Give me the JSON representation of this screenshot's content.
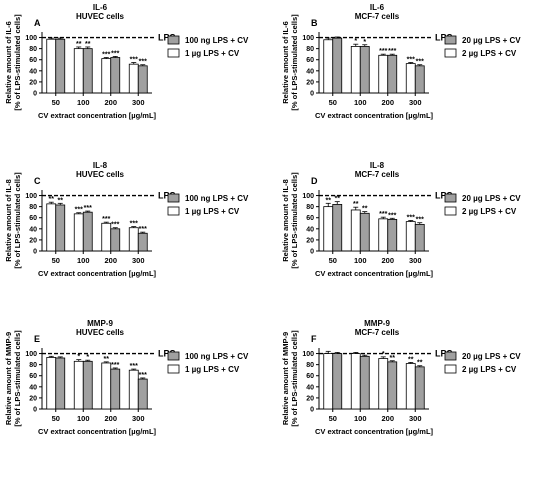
{
  "chart_data": [
    {
      "type": "bar",
      "panel": "A",
      "title": "IL-6",
      "subtitle": "HUVEC cells",
      "ylabel": [
        "Relative amount of IL-6",
        "[% of LPS-stimulated cells]"
      ],
      "xlabel": "CV extract concentration [µg/mL]",
      "reference": {
        "value": 100,
        "label": "LPS"
      },
      "categories": [
        "50",
        "100",
        "200",
        "300"
      ],
      "ylim": [
        0,
        110
      ],
      "yticks": [
        0,
        20,
        40,
        60,
        80,
        100
      ],
      "series": [
        {
          "name": "1 µg LPS + CV",
          "color": "#ffffff",
          "values": [
            97,
            80,
            62,
            52
          ],
          "errors": [
            2,
            3,
            2,
            3
          ],
          "significance": [
            null,
            "**",
            "***",
            "***"
          ]
        },
        {
          "name": "100 ng LPS + CV",
          "color": "#a0a0a0",
          "values": [
            97,
            80,
            64,
            49
          ],
          "errors": [
            2,
            3,
            2,
            2
          ],
          "significance": [
            null,
            "**",
            "***",
            "***"
          ]
        }
      ]
    },
    {
      "type": "bar",
      "panel": "B",
      "title": "IL-6",
      "subtitle": "MCF-7 cells",
      "ylabel": [
        "Relative amount of IL-6",
        "[% of LPS-stimulated cells]"
      ],
      "xlabel": "CV extract concentration [µg/mL]",
      "reference": {
        "value": 100,
        "label": "LPS"
      },
      "categories": [
        "50",
        "100",
        "200",
        "300"
      ],
      "ylim": [
        0,
        110
      ],
      "yticks": [
        0,
        20,
        40,
        60,
        80,
        100
      ],
      "series": [
        {
          "name": "2 µg LPS + CV",
          "color": "#ffffff",
          "values": [
            96,
            84,
            68,
            53
          ],
          "errors": [
            3,
            4,
            2,
            2
          ],
          "significance": [
            null,
            "*",
            "***",
            "***"
          ]
        },
        {
          "name": "20 µg LPS + CV",
          "color": "#a0a0a0",
          "values": [
            99,
            84,
            68,
            49
          ],
          "errors": [
            2,
            3,
            2,
            2
          ],
          "significance": [
            null,
            "*",
            "***",
            "***"
          ]
        }
      ]
    },
    {
      "type": "bar",
      "panel": "C",
      "title": "IL-8",
      "subtitle": "HUVEC cells",
      "ylabel": [
        "Relative amount of IL-8",
        "[% of LPS-stimulated cells]"
      ],
      "xlabel": "CV extract concentration [µg/mL]",
      "reference": {
        "value": 100,
        "label": "LPS"
      },
      "categories": [
        "50",
        "100",
        "200",
        "300"
      ],
      "ylim": [
        0,
        110
      ],
      "yticks": [
        0,
        20,
        40,
        60,
        80,
        100
      ],
      "series": [
        {
          "name": "1 µg LPS + CV",
          "color": "#ffffff",
          "values": [
            85,
            67,
            50,
            42
          ],
          "errors": [
            3,
            2,
            2,
            2
          ],
          "significance": [
            "**",
            "***",
            "***",
            "***"
          ]
        },
        {
          "name": "100 ng LPS + CV",
          "color": "#a0a0a0",
          "values": [
            83,
            70,
            40,
            32
          ],
          "errors": [
            3,
            2,
            2,
            2
          ],
          "significance": [
            "**",
            "***",
            "***",
            "***"
          ]
        }
      ]
    },
    {
      "type": "bar",
      "panel": "D",
      "title": "IL-8",
      "subtitle": "MCF-7 cells",
      "ylabel": [
        "Relative amount of IL-8",
        "[% of LPS-stimulated cells]"
      ],
      "xlabel": "CV extract concentration [µg/mL]",
      "reference": {
        "value": 100,
        "label": "LPS"
      },
      "categories": [
        "50",
        "100",
        "200",
        "300"
      ],
      "ylim": [
        0,
        110
      ],
      "yticks": [
        0,
        20,
        40,
        60,
        80,
        100
      ],
      "series": [
        {
          "name": "2 µg LPS + CV",
          "color": "#ffffff",
          "values": [
            80,
            74,
            58,
            53
          ],
          "errors": [
            6,
            5,
            3,
            2
          ],
          "significance": [
            "**",
            "**",
            "***",
            "***"
          ]
        },
        {
          "name": "20 µg LPS + CV",
          "color": "#a0a0a0",
          "values": [
            84,
            68,
            57,
            48
          ],
          "errors": [
            5,
            3,
            2,
            3
          ],
          "significance": [
            "**",
            "**",
            "***",
            "***"
          ]
        }
      ]
    },
    {
      "type": "bar",
      "panel": "E",
      "title": "MMP-9",
      "subtitle": "HUVEC cells",
      "ylabel": [
        "Relative amount of MMP-9",
        "[% of LPS-stimulated cells]"
      ],
      "xlabel": "CV extract concentration [µg/mL]",
      "reference": {
        "value": 100,
        "label": "LPS"
      },
      "categories": [
        "50",
        "100",
        "200",
        "300"
      ],
      "ylim": [
        0,
        110
      ],
      "yticks": [
        0,
        20,
        40,
        60,
        80,
        100
      ],
      "series": [
        {
          "name": "1 µg LPS + CV",
          "color": "#ffffff",
          "values": [
            93,
            86,
            83,
            70
          ],
          "errors": [
            2,
            3,
            2,
            2
          ],
          "significance": [
            null,
            "*",
            "**",
            "***"
          ]
        },
        {
          "name": "100 ng LPS + CV",
          "color": "#a0a0a0",
          "values": [
            92,
            86,
            72,
            54
          ],
          "errors": [
            2,
            2,
            2,
            2
          ],
          "significance": [
            null,
            "*",
            "***",
            "***"
          ]
        }
      ]
    },
    {
      "type": "bar",
      "panel": "F",
      "title": "MMP-9",
      "subtitle": "MCF-7 cells",
      "ylabel": [
        "Relative amount of MMP-9",
        "[% of LPS-stimulated cells]"
      ],
      "xlabel": "CV extract concentration [µg/mL]",
      "reference": {
        "value": 100,
        "label": "LPS"
      },
      "categories": [
        "50",
        "100",
        "200",
        "300"
      ],
      "ylim": [
        0,
        110
      ],
      "yticks": [
        0,
        20,
        40,
        60,
        80,
        100
      ],
      "series": [
        {
          "name": "2 µg LPS + CV",
          "color": "#ffffff",
          "values": [
            100,
            100,
            91,
            82
          ],
          "errors": [
            4,
            2,
            3,
            2
          ],
          "significance": [
            null,
            null,
            "*",
            "**"
          ]
        },
        {
          "name": "20 µg LPS + CV",
          "color": "#a0a0a0",
          "values": [
            100,
            95,
            85,
            76
          ],
          "errors": [
            2,
            2,
            2,
            2
          ],
          "significance": [
            null,
            null,
            "**",
            "**"
          ]
        }
      ]
    }
  ]
}
